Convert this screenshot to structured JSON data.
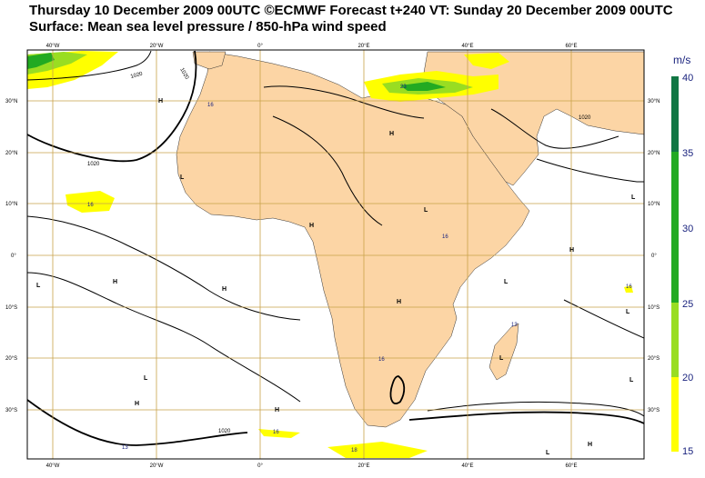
{
  "title": {
    "line1": "Thursday 10 December 2009 00UTC ©ECMWF Forecast t+240 VT: Sunday 20 December 2009 00UTC",
    "line2": "Surface: Mean sea level pressure / 850-hPa wind speed"
  },
  "colors": {
    "land": "#fcd5a5",
    "grid": "#c8a24a",
    "wind15": "#ffff00",
    "wind20": "#99dd22",
    "wind25": "#22aa22",
    "wind30": "#117744",
    "isobar": "#000000"
  },
  "colorbar": {
    "unit": "m/s",
    "ticks": [
      "40",
      "35",
      "30",
      "25",
      "20",
      "15"
    ]
  },
  "axes": {
    "lon_labels": [
      "40°W",
      "20°W",
      "0°",
      "20°E",
      "40°E",
      "60°E"
    ],
    "lat_labels": [
      "30°N",
      "20°N",
      "10°N",
      "0°",
      "10°S",
      "20°S",
      "30°S"
    ]
  },
  "isobar_labels": [
    "1020",
    "1020",
    "1020",
    "1020",
    "1020"
  ],
  "pressure_centers": [
    "H",
    "H",
    "H",
    "H",
    "H",
    "H",
    "H",
    "H",
    "H",
    "H",
    "L",
    "L",
    "L",
    "L",
    "L",
    "L",
    "L",
    "L",
    "L",
    "L"
  ],
  "wind_labels": [
    "16",
    "16",
    "23",
    "16",
    "16",
    "13",
    "16",
    "18",
    "16",
    "13"
  ]
}
